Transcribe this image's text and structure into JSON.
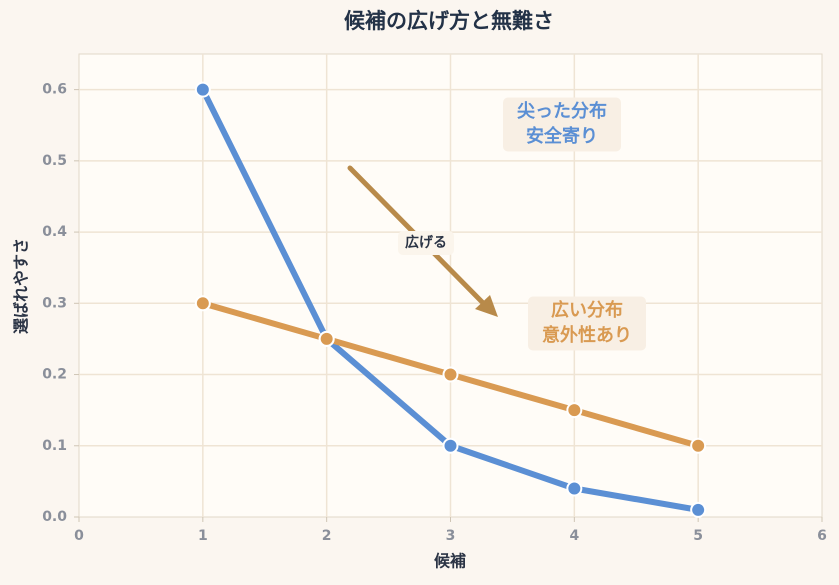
{
  "chart_data": {
    "type": "line",
    "title": "候補の広げ方と無難さ",
    "x_label": "候補",
    "y_label": "選ばれやすさ",
    "x": [
      1,
      2,
      3,
      4,
      5
    ],
    "series": [
      {
        "color": "#5b8fd4",
        "values": [
          0.6,
          0.25,
          0.1,
          0.04,
          0.01
        ]
      },
      {
        "color": "#d99a52",
        "values": [
          0.3,
          0.25,
          0.2,
          0.15,
          0.1
        ]
      }
    ],
    "xlim": [
      0,
      6
    ],
    "xticks": [
      0,
      1,
      2,
      3,
      4,
      5,
      6
    ],
    "ylim": [
      0,
      0.65
    ],
    "yticks": [
      {
        "value": 0,
        "label": "0.0"
      },
      0.1,
      0.2,
      0.3,
      0.4,
      0.5,
      0.6
    ],
    "grid": true,
    "annotations": [
      {
        "lines": [
          "尖った分布",
          "安全寄り"
        ],
        "color": "#5b8fd4"
      },
      {
        "lines": [
          "広い分布",
          "意外性あり"
        ],
        "color": "#d99a52"
      },
      {
        "lines": [
          "広げる"
        ],
        "color": "#2b3445"
      }
    ]
  }
}
